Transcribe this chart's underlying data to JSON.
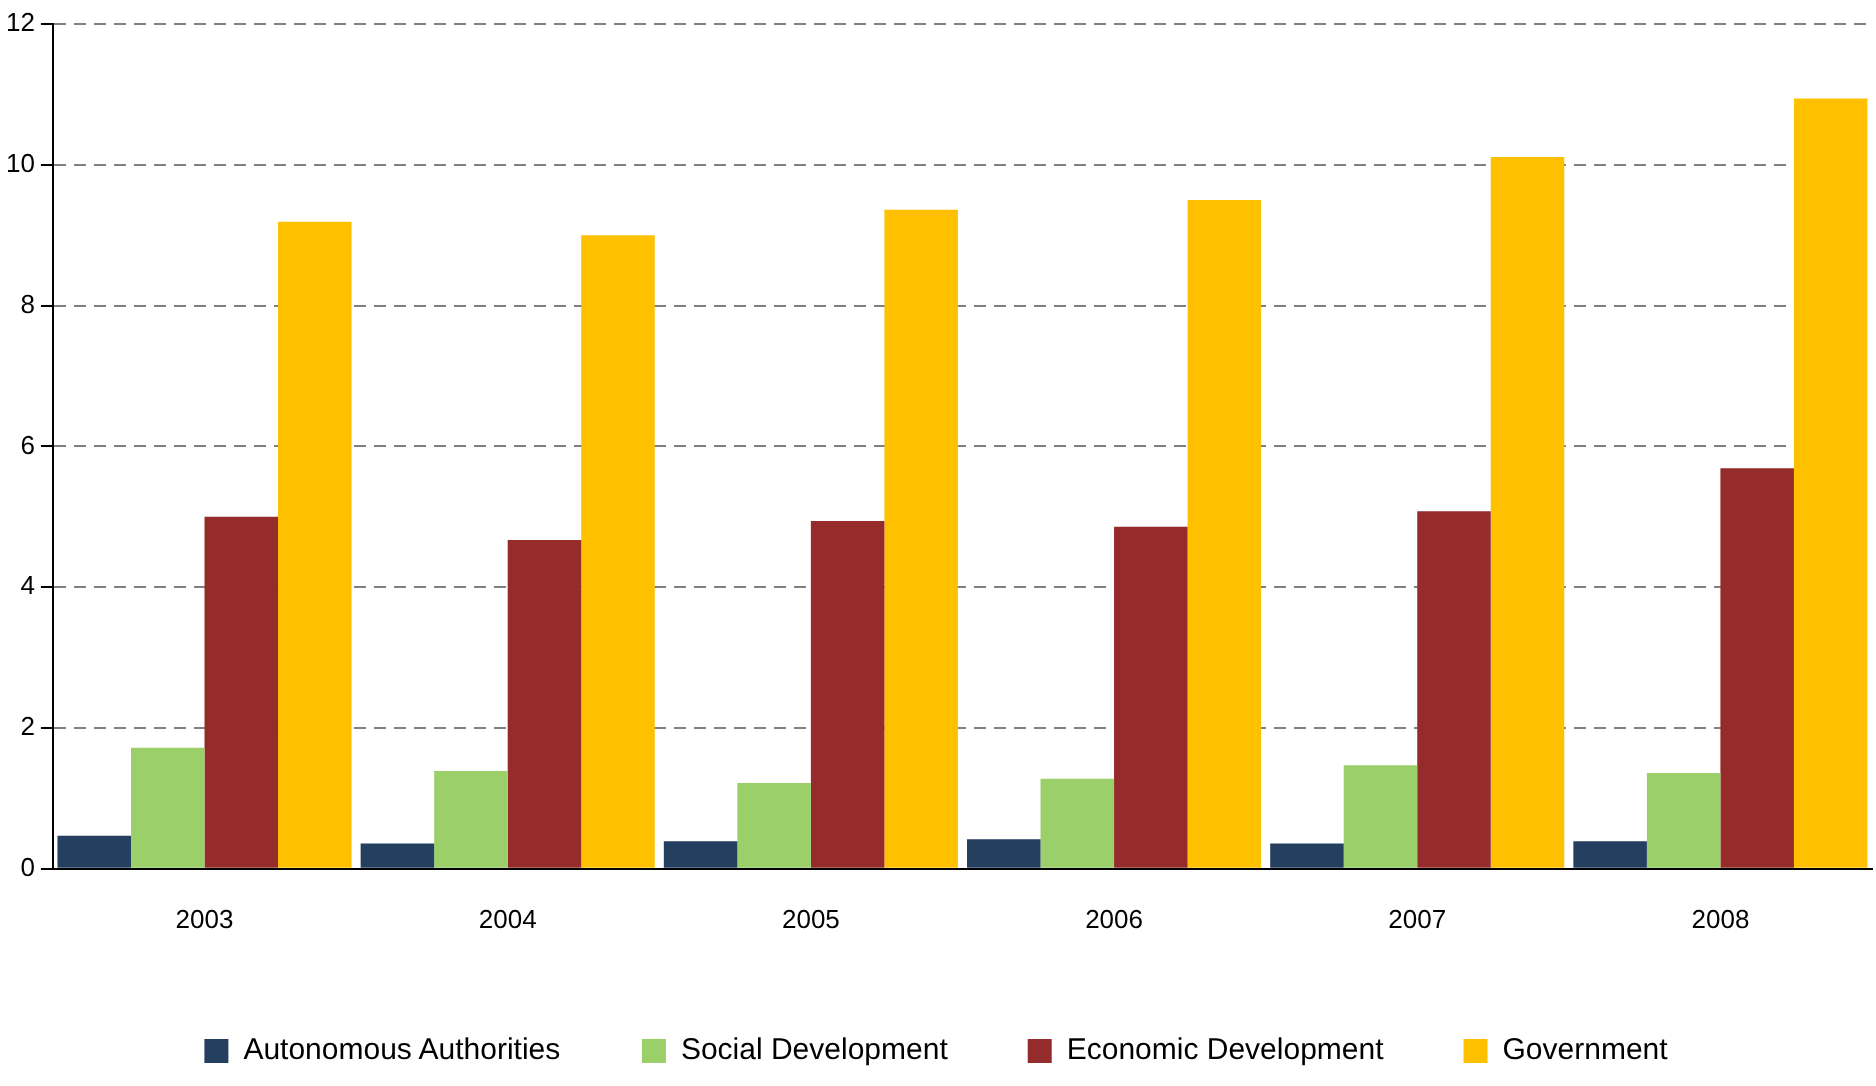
{
  "chart_data": {
    "type": "bar",
    "categories": [
      "2003",
      "2004",
      "2005",
      "2006",
      "2007",
      "2008"
    ],
    "series": [
      {
        "name": "Autonomous Authorities",
        "color": "#243f60",
        "values": [
          0.47,
          0.36,
          0.39,
          0.42,
          0.36,
          0.39
        ]
      },
      {
        "name": "Social Development",
        "color": "#9bcf6a",
        "values": [
          1.72,
          1.39,
          1.22,
          1.28,
          1.47,
          1.36
        ]
      },
      {
        "name": "Economic Development",
        "color": "#962b2b",
        "values": [
          5.0,
          4.67,
          4.94,
          4.86,
          5.08,
          5.69
        ]
      },
      {
        "name": "Government",
        "color": "#ffc000",
        "values": [
          9.19,
          9.0,
          9.36,
          9.5,
          10.11,
          10.94
        ]
      }
    ],
    "ylim": [
      0,
      12
    ],
    "yticks": [
      0,
      2,
      4,
      6,
      8,
      10,
      12
    ],
    "grid": "y",
    "legend": "bottom"
  }
}
